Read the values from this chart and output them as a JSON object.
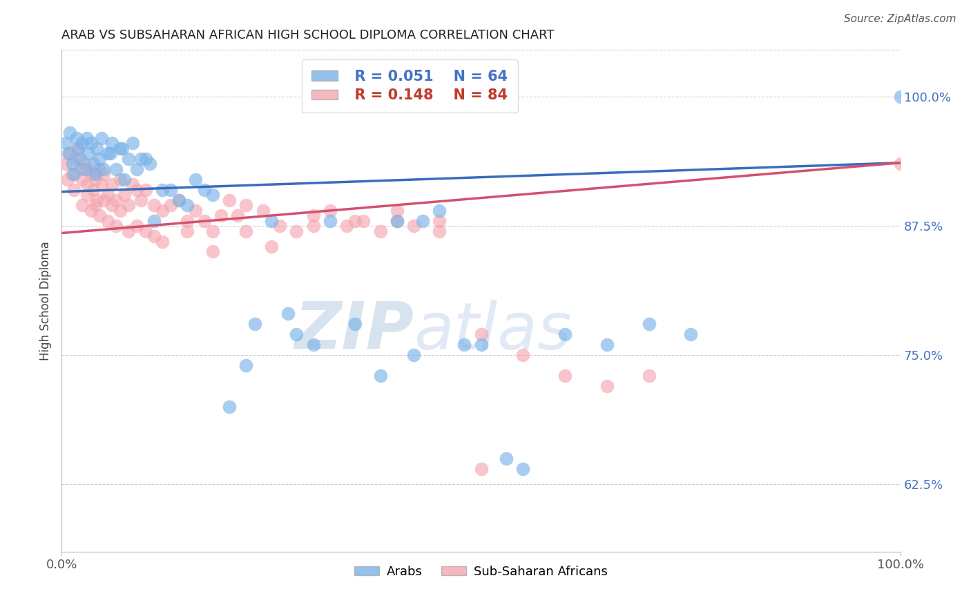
{
  "title": "ARAB VS SUBSAHARAN AFRICAN HIGH SCHOOL DIPLOMA CORRELATION CHART",
  "source": "Source: ZipAtlas.com",
  "ylabel": "High School Diploma",
  "ytick_values": [
    0.625,
    0.75,
    0.875,
    1.0
  ],
  "xlim": [
    0.0,
    1.0
  ],
  "ylim": [
    0.56,
    1.045
  ],
  "watermark_text": "ZIPatlas",
  "watermark_color": "#c8d8f0",
  "background_color": "#ffffff",
  "grid_color": "#cccccc",
  "arab_color": "#7ab3e8",
  "subsaharan_color": "#f4a7b0",
  "arab_line_color": "#3a6dbb",
  "subsaharan_line_color": "#d45070",
  "arab_R": 0.051,
  "subsaharan_R": 0.148,
  "arab_N": 64,
  "subsaharan_N": 84,
  "legend_R_arab": "0.051",
  "legend_N_arab": "64",
  "legend_R_sub": "0.148",
  "legend_N_sub": "84",
  "title_fontsize": 13,
  "axis_label_color": "#4472c4",
  "arab_line_intercept": 0.908,
  "arab_line_slope": 0.028,
  "sub_line_intercept": 0.868,
  "sub_line_slope": 0.068
}
